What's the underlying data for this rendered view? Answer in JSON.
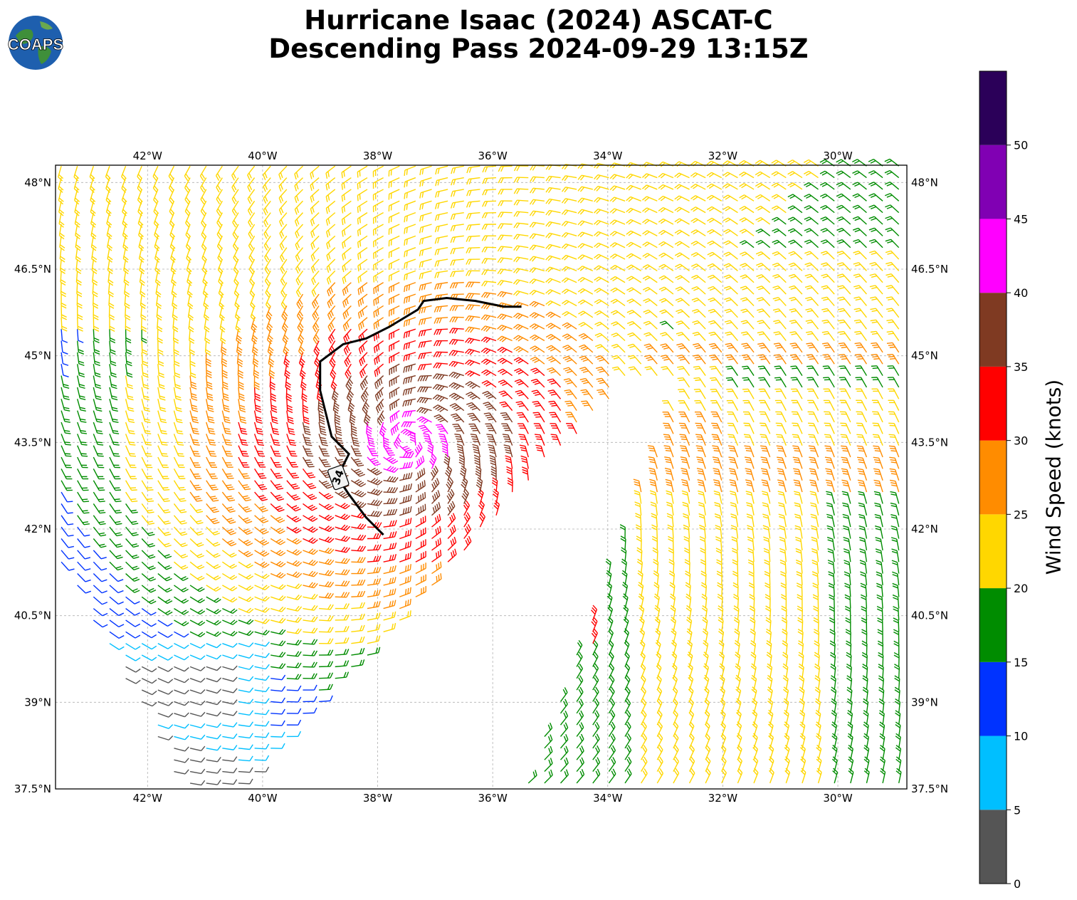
{
  "title": {
    "line1": "Hurricane Isaac (2024) ASCAT-C",
    "line2": "Descending Pass 2024-09-29 13:15Z"
  },
  "logo": {
    "text": "COAPS"
  },
  "map": {
    "lon_range": [
      -43.6,
      -28.8
    ],
    "lat_range": [
      37.5,
      48.3
    ],
    "lon_ticks": [
      "42°W",
      "40°W",
      "38°W",
      "36°W",
      "34°W",
      "32°W",
      "30°W"
    ],
    "lon_tick_values": [
      -42,
      -40,
      -38,
      -36,
      -34,
      -32,
      -30
    ],
    "lat_ticks": [
      "48°N",
      "46.5°N",
      "45°N",
      "43.5°N",
      "42°N",
      "40.5°N",
      "39°N",
      "37.5°N"
    ],
    "lat_tick_values": [
      48,
      46.5,
      45,
      43.5,
      42,
      40.5,
      39,
      37.5
    ],
    "gridlines": true,
    "contour_label": "34",
    "contour_34kt": [
      [
        -37.9,
        41.9
      ],
      [
        -38.2,
        42.2
      ],
      [
        -38.5,
        42.6
      ],
      [
        -38.7,
        42.9
      ],
      [
        -38.5,
        43.3
      ],
      [
        -38.8,
        43.6
      ],
      [
        -38.9,
        44.0
      ],
      [
        -39.0,
        44.4
      ],
      [
        -39.0,
        44.9
      ],
      [
        -38.6,
        45.2
      ],
      [
        -38.2,
        45.3
      ],
      [
        -37.8,
        45.5
      ],
      [
        -37.3,
        45.8
      ],
      [
        -37.2,
        45.95
      ],
      [
        -36.8,
        46.0
      ],
      [
        -36.3,
        45.95
      ],
      [
        -35.8,
        45.85
      ],
      [
        -35.5,
        45.85
      ]
    ]
  },
  "colorbar": {
    "label": "Wind Speed (knots)",
    "ticks": [
      "0",
      "5",
      "10",
      "15",
      "20",
      "25",
      "30",
      "35",
      "40",
      "45",
      "50"
    ],
    "max": 55,
    "bins": [
      {
        "from": 0,
        "to": 5,
        "color": "#555555"
      },
      {
        "from": 5,
        "to": 10,
        "color": "#00bfff"
      },
      {
        "from": 10,
        "to": 15,
        "color": "#0033ff"
      },
      {
        "from": 15,
        "to": 20,
        "color": "#008c00"
      },
      {
        "from": 20,
        "to": 25,
        "color": "#ffd700"
      },
      {
        "from": 25,
        "to": 30,
        "color": "#ff8c00"
      },
      {
        "from": 30,
        "to": 35,
        "color": "#ff0000"
      },
      {
        "from": 35,
        "to": 40,
        "color": "#7f3a22"
      },
      {
        "from": 40,
        "to": 45,
        "color": "#ff00ff"
      },
      {
        "from": 45,
        "to": 50,
        "color": "#8000b3"
      },
      {
        "from": 50,
        "to": 55,
        "color": "#2b0059"
      }
    ]
  }
}
